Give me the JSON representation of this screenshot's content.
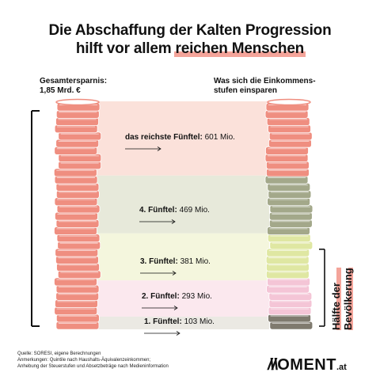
{
  "title": {
    "line1": "Die Abschaffung der Kalten Progression",
    "line2_prefix": "hilft vor allem ",
    "line2_highlight": "reichen Menschen"
  },
  "left_label": {
    "line1": "Gesamtersparnis:",
    "line2": "1,85 Mrd. €"
  },
  "right_label": {
    "line1": "Was sich die Einkommens-",
    "line2": "stufen einsparen"
  },
  "bracket_label": {
    "line1": "Hälfte der",
    "line2": "Bevölkerung"
  },
  "footer": {
    "line1": "Quelle: SORESI, eigene Berechnungen",
    "line2": "Anmerkungen: Quintile nach Haushalts-Äquivalenzeinkommen;",
    "line3": "Anhebung der Steuerstufen und Absetzbeträge nach Medieninformation"
  },
  "logo": {
    "symbol": "/\\/\\",
    "text": "OMENT",
    "suffix": ".at"
  },
  "colors": {
    "left_coin": "#ef8e80",
    "q5": "#ef8e80",
    "q4": "#a3a88a",
    "q3": "#dfe7a2",
    "q2": "#f4c5d6",
    "q1": "#7f7a6e",
    "band_q5": "#fbe1da",
    "band_q4": "#e7e9da",
    "band_q3": "#f4f6dd",
    "band_q2": "#fbe8ee",
    "band_q1": "#ebe9e3",
    "highlight": "#f4a49a"
  },
  "chart_data": {
    "type": "bar",
    "title": "Die Abschaffung der Kalten Progression hilft vor allem reichen Menschen",
    "total": {
      "label": "Gesamtersparnis:",
      "value_text": "1,85 Mrd. €",
      "value": 1850
    },
    "unit": "Mio.",
    "categories": [
      "das reichste Fünftel",
      "4. Fünftel",
      "3. Fünftel",
      "2. Fünftel",
      "1. Fünftel"
    ],
    "values": [
      601,
      469,
      381,
      293,
      103
    ],
    "labels": [
      {
        "name": "das reichste Fünftel:",
        "value": "601 Mio."
      },
      {
        "name": "4. Fünftel:",
        "value": "469 Mio."
      },
      {
        "name": "3. Fünftel:",
        "value": "381 Mio."
      },
      {
        "name": "2. Fünftel:",
        "value": "293 Mio."
      },
      {
        "name": "1. Fünftel:",
        "value": "103 Mio."
      }
    ]
  }
}
